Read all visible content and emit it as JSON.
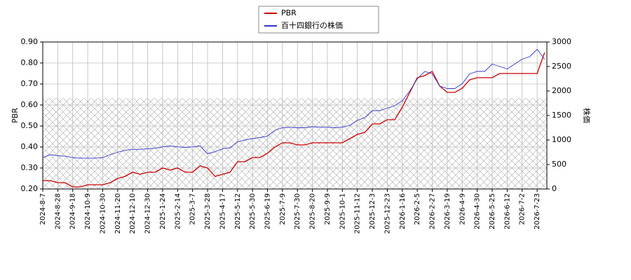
{
  "chart_data": {
    "type": "line",
    "categories": [
      "2024-8-7",
      null,
      "2024-8-28",
      null,
      "2024-9-18",
      null,
      "2024-10-9",
      null,
      "2024-10-30",
      null,
      "2024-11-20",
      null,
      "2024-12-10",
      null,
      "2024-12-30",
      null,
      "2025-1-24",
      null,
      "2025-2-14",
      null,
      "2025-3-7",
      null,
      "2025-3-28",
      null,
      "2025-4-17",
      null,
      "2025-5-12",
      null,
      "2025-5-30",
      null,
      "2025-6-19",
      null,
      "2025-7-9",
      null,
      "2025-7-30",
      null,
      "2025-8-20",
      null,
      "2025-9-9",
      null,
      "2025-10-1",
      null,
      "2025-11-12",
      null,
      "2025-12-3",
      null,
      "2025-12-23",
      null,
      "2026-1-16",
      null,
      "2026-2-5",
      null,
      "2026-2-27",
      null,
      "2026-3-19",
      null,
      "2026-4-9",
      null,
      "2026-4-30",
      null,
      "2026-5-25",
      null,
      "2026-6-12",
      null,
      "2026-7-2",
      null,
      "2026-7-23",
      null
    ],
    "series": [
      {
        "name": "PBR",
        "color": "#cc0000",
        "values": [
          0.24,
          0.24,
          0.23,
          0.23,
          0.21,
          0.21,
          0.22,
          0.22,
          0.22,
          0.23,
          0.25,
          0.26,
          0.28,
          0.27,
          0.28,
          0.28,
          0.3,
          0.29,
          0.3,
          0.28,
          0.28,
          0.31,
          0.3,
          0.26,
          0.27,
          0.28,
          0.33,
          0.33,
          0.35,
          0.35,
          0.37,
          0.4,
          0.42,
          0.42,
          0.41,
          0.41,
          0.42,
          0.42,
          0.42,
          0.42,
          0.42,
          0.44,
          0.46,
          0.47,
          0.51,
          0.51,
          0.53,
          0.53,
          0.59,
          0.66,
          0.73,
          0.74,
          0.76,
          0.69,
          0.66,
          0.66,
          0.68,
          0.72,
          0.73,
          0.73,
          0.73,
          0.75,
          0.75,
          0.75,
          0.75,
          0.75,
          0.75,
          0.85
        ]
      },
      {
        "name": "百十四銀行の株価",
        "color": "#3333cc",
        "axis": "y2",
        "values": [
          640,
          700,
          680,
          670,
          640,
          630,
          630,
          630,
          640,
          700,
          750,
          790,
          810,
          810,
          820,
          830,
          860,
          880,
          860,
          850,
          860,
          880,
          720,
          760,
          820,
          840,
          960,
          1000,
          1030,
          1050,
          1080,
          1200,
          1250,
          1260,
          1250,
          1250,
          1270,
          1260,
          1260,
          1250,
          1260,
          1300,
          1400,
          1460,
          1600,
          1600,
          1650,
          1700,
          1800,
          2000,
          2250,
          2400,
          2350,
          2100,
          2050,
          2050,
          2150,
          2350,
          2400,
          2400,
          2550,
          2500,
          2450,
          2550,
          2650,
          2700,
          2850,
          2650
        ]
      }
    ],
    "y_label": "PBR",
    "y2_label": "株価",
    "ylim": [
      0.2,
      0.9
    ],
    "yticks": [
      {
        "value": 0.2,
        "label": "0.20"
      },
      {
        "value": 0.3,
        "label": "0.30"
      },
      {
        "value": 0.4,
        "label": "0.40"
      },
      {
        "value": 0.5,
        "label": "0.50"
      },
      {
        "value": 0.6,
        "label": "0.60"
      },
      {
        "value": 0.7,
        "label": "0.70"
      },
      {
        "value": 0.8,
        "label": "0.80"
      },
      {
        "value": 0.9,
        "label": "0.90"
      }
    ],
    "y2lim": [
      0,
      3000
    ],
    "y2ticks": [
      0,
      500,
      1000,
      1500,
      2000,
      2500,
      3000
    ],
    "hatch_ylim": [
      0.2,
      0.633
    ],
    "grid": true,
    "legend": "top"
  }
}
